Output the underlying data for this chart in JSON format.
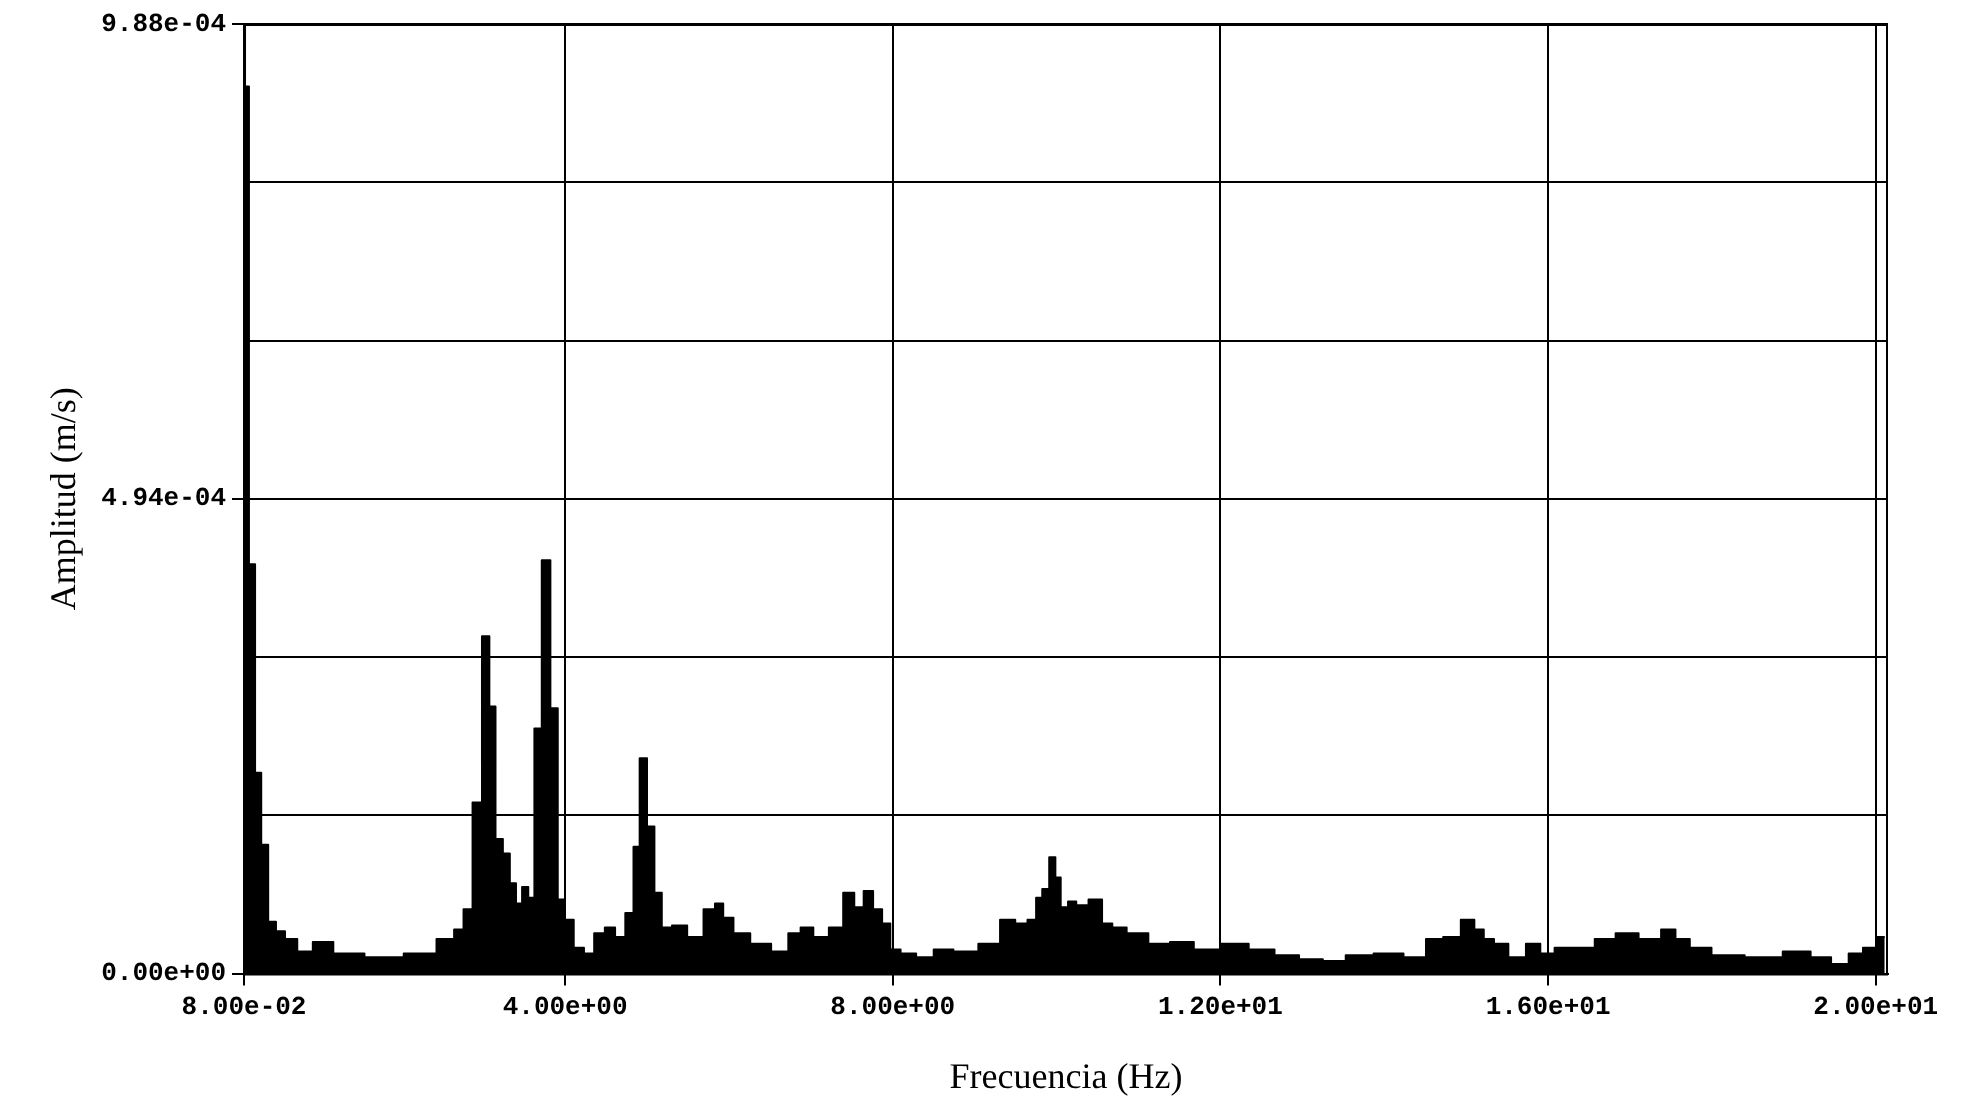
{
  "chart_data": {
    "type": "area",
    "xlabel": "Frecuencia (Hz)",
    "ylabel": "Amplitud (m/s)",
    "color": "#000000",
    "grid": true,
    "legend": false,
    "marker": "none",
    "xlim": [
      0.08,
      20.15
    ],
    "xticks": [
      {
        "value": 0.08,
        "label": "8.00e-02"
      },
      {
        "value": 4,
        "label": "4.00e+00"
      },
      {
        "value": 8,
        "label": "8.00e+00"
      },
      {
        "value": 12,
        "label": "1.20e+01"
      },
      {
        "value": 16,
        "label": "1.60e+01"
      },
      {
        "value": 20,
        "label": "2.00e+01"
      }
    ],
    "ylim": [
      0,
      0.000988
    ],
    "yticks": [
      {
        "value": 0,
        "label": "0.00e+00"
      },
      {
        "value": 0.0001647,
        "label": null
      },
      {
        "value": 0.0003293,
        "label": null
      },
      {
        "value": 0.000494,
        "label": "4.94e-04"
      },
      {
        "value": 0.0006587,
        "label": null
      },
      {
        "value": 0.0008233,
        "label": null
      },
      {
        "value": 0.000988,
        "label": "9.88e-04"
      }
    ],
    "x": [
      0.1,
      0.18,
      0.25,
      0.33,
      0.42,
      0.52,
      0.64,
      0.82,
      1.02,
      1.32,
      1.78,
      2.28,
      2.58,
      2.71,
      2.81,
      2.93,
      3.04,
      3.11,
      3.19,
      3.29,
      3.36,
      3.44,
      3.51,
      3.59,
      3.66,
      3.77,
      3.87,
      3.95,
      4.04,
      4.17,
      4.29,
      4.42,
      4.55,
      4.67,
      4.8,
      4.87,
      4.95,
      5.05,
      5.13,
      5.23,
      5.38,
      5.6,
      5.78,
      5.88,
      5.98,
      6.13,
      6.39,
      6.64,
      6.81,
      6.94,
      7.12,
      7.32,
      7.47,
      7.59,
      7.7,
      7.82,
      7.92,
      8.02,
      8.17,
      8.4,
      8.6,
      8.88,
      9.21,
      9.41,
      9.58,
      9.71,
      9.79,
      9.86,
      9.96,
      10.01,
      10.09,
      10.19,
      10.29,
      10.49,
      10.62,
      10.74,
      10.97,
      11.27,
      11.5,
      11.85,
      12.18,
      12.51,
      12.81,
      13.11,
      13.39,
      13.67,
      14.07,
      14.4,
      14.62,
      14.82,
      15.05,
      15.15,
      15.28,
      15.4,
      15.63,
      15.83,
      15.98,
      16.18,
      16.43,
      16.71,
      16.94,
      17.27,
      17.49,
      17.62,
      17.84,
      18.15,
      18.65,
      19.08,
      19.33,
      19.58,
      19.76,
      19.93,
      20.11
    ],
    "values": [
      0.000923,
      0.000426,
      0.000209,
      0.000134,
      5.4e-05,
      4.4e-05,
      3.6e-05,
      2.3e-05,
      3.3e-05,
      2.1e-05,
      1.7e-05,
      2.1e-05,
      3.6e-05,
      4.6e-05,
      6.7e-05,
      0.000178,
      0.000351,
      0.000278,
      0.00014,
      0.000125,
      9.4e-05,
      7.3e-05,
      9e-05,
      7.9e-05,
      0.000255,
      0.00043,
      0.000276,
      7.7e-05,
      5.6e-05,
      2.7e-05,
      2.1e-05,
      4.2e-05,
      4.8e-05,
      3.8e-05,
      6.3e-05,
      0.000132,
      0.000224,
      0.000153,
      8.4e-05,
      4.8e-05,
      5e-05,
      3.8e-05,
      6.7e-05,
      7.3e-05,
      5.8e-05,
      4.2e-05,
      3.1e-05,
      2.3e-05,
      4.2e-05,
      4.8e-05,
      3.8e-05,
      4.8e-05,
      8.4e-05,
      6.9e-05,
      8.6e-05,
      6.7e-05,
      5.2e-05,
      2.5e-05,
      2.1e-05,
      1.7e-05,
      2.5e-05,
      2.3e-05,
      3.1e-05,
      5.6e-05,
      5.2e-05,
      5.6e-05,
      7.9e-05,
      8.8e-05,
      0.000121,
      0.0001,
      6.9e-05,
      7.5e-05,
      7.1e-05,
      7.7e-05,
      5.2e-05,
      4.8e-05,
      4.2e-05,
      3.1e-05,
      3.3e-05,
      2.5e-05,
      3.1e-05,
      2.5e-05,
      1.9e-05,
      1.5e-05,
      1.3e-05,
      1.9e-05,
      2.1e-05,
      1.7e-05,
      3.6e-05,
      3.8e-05,
      5.6e-05,
      4.6e-05,
      3.6e-05,
      3.1e-05,
      1.7e-05,
      3.1e-05,
      2.1e-05,
      2.7e-05,
      2.7e-05,
      3.6e-05,
      4.2e-05,
      3.6e-05,
      4.6e-05,
      3.6e-05,
      2.7e-05,
      1.9e-05,
      1.7e-05,
      2.3e-05,
      1.7e-05,
      1e-05,
      2.1e-05,
      2.7e-05,
      3.8e-05
    ]
  }
}
